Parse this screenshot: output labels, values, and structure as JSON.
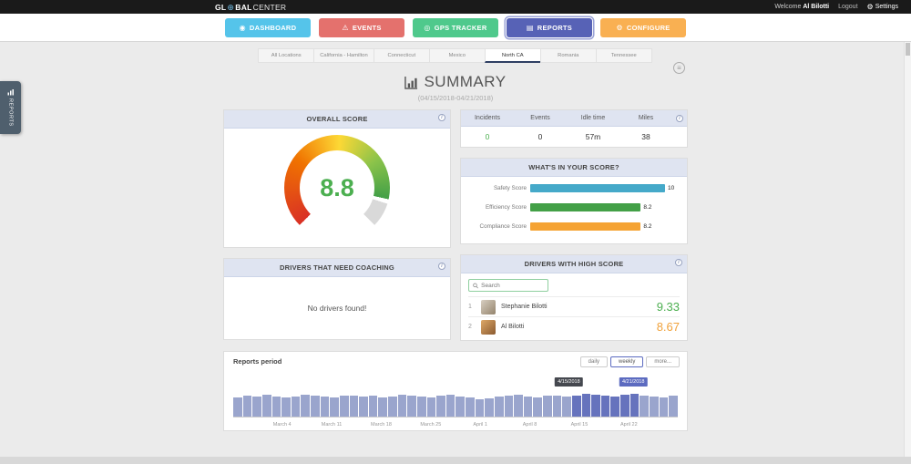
{
  "icons": {
    "info_glyph": "i",
    "gear_glyph": "⚙",
    "globe_glyph": "⊕",
    "menu_glyph": "≡"
  },
  "topbar": {
    "logo": {
      "prefix": "GL",
      "mid": "BAL",
      "suffix": "CENTER"
    },
    "welcome_prefix": "Welcome",
    "user_name": "Al Bilotti",
    "logout_label": "Logout",
    "settings_label": "Settings"
  },
  "nav": {
    "buttons": [
      {
        "label": "DASHBOARD",
        "icon": "dashboard",
        "glyph": "◉",
        "color": "#55c4ea",
        "active": false
      },
      {
        "label": "EVENTS",
        "icon": "warning",
        "glyph": "⚠",
        "color": "#e4716d",
        "active": false
      },
      {
        "label": "GPS TRACKER",
        "icon": "gps",
        "glyph": "◎",
        "color": "#4fc98c",
        "active": false
      },
      {
        "label": "REPORTS",
        "icon": "reports",
        "glyph": "▤",
        "color": "#5762b6",
        "active": true
      },
      {
        "label": "CONFIGURE",
        "icon": "configure",
        "glyph": "⚙",
        "color": "#f9b052",
        "active": false
      }
    ]
  },
  "tabs": {
    "items": [
      "All Locations",
      "California - Hamilton",
      "Connecticut",
      "Mexico",
      "North CA",
      "Romania",
      "Tennessee"
    ],
    "selected_index": 4
  },
  "side_tab": {
    "label": "REPORTS"
  },
  "page": {
    "title": "SUMMARY",
    "subtitle": "(04/15/2018-04/21/2018)"
  },
  "overall_score": {
    "title": "OVERALL SCORE",
    "value": "8.8",
    "value_color": "#4caf50"
  },
  "stats": {
    "columns": [
      {
        "header": "Incidents",
        "value": "0",
        "value_color": "#4caf50"
      },
      {
        "header": "Events",
        "value": "0",
        "value_color": "#333333"
      },
      {
        "header": "Idle time",
        "value": "57m",
        "value_color": "#333333"
      },
      {
        "header": "Miles",
        "value": "38",
        "value_color": "#333333"
      }
    ]
  },
  "score_card": {
    "title": "WHAT'S IN YOUR SCORE?"
  },
  "coaching": {
    "title": "DRIVERS THAT NEED COACHING",
    "empty_message": "No drivers found!"
  },
  "high_score": {
    "title": "DRIVERS WITH HIGH SCORE",
    "search_placeholder": "Search",
    "drivers": [
      {
        "rank": "1",
        "name": "Stephanie Bilotti",
        "score": "9.33",
        "score_color": "#4caf50",
        "avatar_colors": [
          "#d8cfc2",
          "#94846c"
        ]
      },
      {
        "rank": "2",
        "name": "Al Bilotti",
        "score": "8.67",
        "score_color": "#f0a23c",
        "avatar_colors": [
          "#dfa968",
          "#8a5a30"
        ]
      }
    ]
  },
  "reports_period": {
    "title": "Reports period",
    "range_buttons": [
      {
        "label": "daily",
        "active": false
      },
      {
        "label": "weekly",
        "active": true
      },
      {
        "label": "more...",
        "active": false
      }
    ],
    "tooltips": [
      {
        "text": "4/15/2018",
        "left_pct": 75.5,
        "bg": "#45484f"
      },
      {
        "text": "4/21/2018",
        "left_pct": 90,
        "bg": "#5c6bc0"
      }
    ]
  },
  "chart_data": [
    {
      "id": "overall_score_gauge",
      "type": "pie",
      "subtype": "gauge",
      "title": "Overall Score",
      "value": 8.8,
      "min": 0,
      "max": 10,
      "sweep_deg": 270,
      "color_stops": [
        "#d93025",
        "#f07300",
        "#fdd835",
        "#8bc34a",
        "#43a047"
      ],
      "track_color": "#d9d9d9",
      "value_label": "8.8"
    },
    {
      "id": "score_breakdown",
      "type": "bar",
      "orientation": "horizontal",
      "title": "What's in your score?",
      "categories": [
        "Safety Score",
        "Efficiency Score",
        "Compliance Score"
      ],
      "values": [
        10,
        8.2,
        8.2
      ],
      "value_labels": [
        "10",
        "8.2",
        "8.2"
      ],
      "colors": [
        "#45a9c9",
        "#43a047",
        "#f5a333"
      ],
      "xlim": [
        0,
        10
      ]
    },
    {
      "id": "reports_period_timeline",
      "type": "bar",
      "title": "Reports period",
      "x_tick_labels": [
        "March 4",
        "March 11",
        "March 18",
        "March 25",
        "April 1",
        "April 8",
        "April 15",
        "April 22"
      ],
      "values": [
        78,
        84,
        80,
        88,
        83,
        79,
        82,
        88,
        85,
        80,
        78,
        84,
        87,
        81,
        84,
        78,
        81,
        88,
        84,
        80,
        78,
        85,
        88,
        82,
        76,
        72,
        75,
        80,
        84,
        88,
        81,
        78,
        84,
        87,
        80,
        84,
        92,
        88,
        85,
        82,
        88,
        93,
        85,
        81,
        78,
        84
      ],
      "ylim": [
        0,
        100
      ],
      "selected_range_indices": [
        35,
        41
      ],
      "selected_range_dates": [
        "4/15/2018",
        "4/21/2018"
      ],
      "bar_color": "#9aa5cd",
      "selected_color": "#6673bd"
    }
  ]
}
